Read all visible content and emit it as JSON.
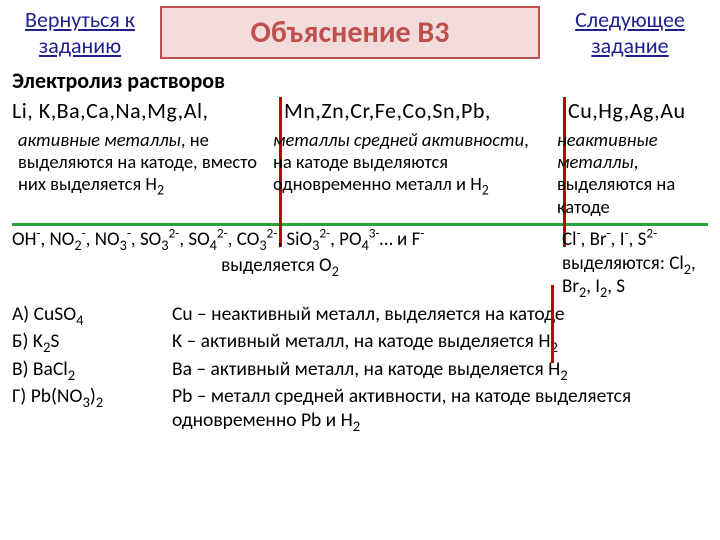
{
  "header": {
    "back_link": "Вернуться к заданию",
    "title": "Объяснение В3",
    "next_link": "Следующее задание"
  },
  "subtitle": "Электролиз растворов",
  "metals": {
    "group1": "Li, K,Ba,Ca,Na,Mg,Al,",
    "group2": "Mn,Zn,Cr,Fe,Co,Sn,Pb,",
    "group3": "Cu,Hg,Ag,Au"
  },
  "desc": {
    "col1_it": "активные металлы",
    "col1_rest": ", не выделяются на катоде, вместо них выделяется H",
    "col1_sub": "2",
    "col2_it": "металлы средней активности",
    "col2_rest": ", на катоде выделяются одновременно металл и H",
    "col2_sub": "2",
    "col3_it": "неактивные металлы",
    "col3_rest": ", выделяются на катоде"
  },
  "anions": {
    "left_line": "OH⁻, NO₂⁻, NO₃⁻, SO₃²⁻, SO₄²⁻, CO₃²⁻, SiO₃²⁻, PO₄³⁻… и F⁻",
    "left_line2": "выделяется O₂",
    "right_line": "Cl⁻, Br⁻, I⁻, S²⁻",
    "right_line2": "выделяются: Cl₂, Br₂, I₂, S"
  },
  "examples": [
    {
      "label": "А) CuSO₄",
      "text": "Cu – неактивный металл, выделяется на катоде"
    },
    {
      "label": "Б) K₂S",
      "text": "K – активный металл, на катоде выделяется H₂"
    },
    {
      "label": "В) BaCl₂",
      "text": "Ba – активный металл, на катоде выделяется H₂"
    },
    {
      "label": "Г) Pb(NO₃)₂",
      "text": "Pb – металл средней активности, на катоде выделяется одновременно Pb и H₂"
    }
  ],
  "colors": {
    "accent_red": "#c00000",
    "title_border": "#c0504d",
    "title_bg": "#f2dcdb",
    "link": "#1f1f8f",
    "green": "#27a33a"
  }
}
